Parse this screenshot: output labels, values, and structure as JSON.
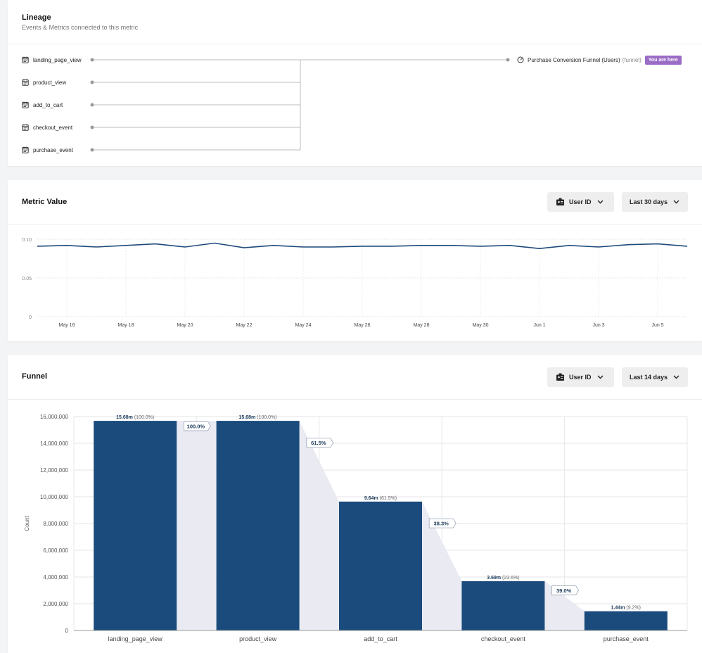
{
  "lineage": {
    "title": "Lineage",
    "subtitle": "Events & Metrics connected to this metric",
    "events": [
      "landing_page_view",
      "product_view",
      "add_to_cart",
      "checkout_event",
      "purchase_event"
    ],
    "target": {
      "label": "Purchase Conversion Funnel (Users)",
      "type": "(funnel)",
      "badge": "You are here"
    },
    "colors": {
      "badge": "#9b6cc6"
    }
  },
  "metric": {
    "title": "Metric Value",
    "id_selector": "User ID",
    "range_selector": "Last 30 days"
  },
  "funnel": {
    "title": "Funnel",
    "id_selector": "User ID",
    "range_selector": "Last 14 days"
  },
  "chart_data": [
    {
      "type": "line",
      "x": [
        "May 15",
        "May 16",
        "May 17",
        "May 18",
        "May 19",
        "May 20",
        "May 21",
        "May 22",
        "May 23",
        "May 24",
        "May 25",
        "May 26",
        "May 27",
        "May 28",
        "May 29",
        "May 30",
        "May 31",
        "Jun 1",
        "Jun 2",
        "Jun 3",
        "Jun 4",
        "Jun 5",
        "Jun 6"
      ],
      "series": [
        {
          "values": [
            0.091,
            0.092,
            0.09,
            0.092,
            0.094,
            0.09,
            0.095,
            0.089,
            0.092,
            0.09,
            0.09,
            0.091,
            0.091,
            0.092,
            0.092,
            0.091,
            0.092,
            0.088,
            0.092,
            0.09,
            0.093,
            0.094,
            0.091
          ]
        }
      ],
      "tick_labels": [
        "May 16",
        "May 18",
        "May 20",
        "May 22",
        "May 24",
        "May 26",
        "May 28",
        "May 30",
        "Jun 1",
        "Jun 3",
        "Jun 5"
      ],
      "y_ticks": [
        "0",
        "0.05",
        "0.10"
      ],
      "ylim": [
        0,
        0.1
      ],
      "grid": true,
      "color": "#1e4a7a"
    },
    {
      "type": "bar",
      "ylabel": "Count",
      "categories": [
        "landing_page_view",
        "product_view",
        "add_to_cart",
        "checkout_event",
        "purchase_event"
      ],
      "values": [
        15680000,
        15680000,
        9640000,
        3690000,
        1440000
      ],
      "bar_labels": [
        "15.68m",
        "15.68m",
        "9.64m",
        "3.69m",
        "1.44m"
      ],
      "bar_percents": [
        "(100.0%)",
        "(100.0%)",
        "(61.5%)",
        "(23.6%)",
        "(9.2%)"
      ],
      "step_conversion": [
        "100.0%",
        "61.5%",
        "38.3%",
        "39.0%"
      ],
      "y_ticks": [
        "0",
        "2,000,000",
        "4,000,000",
        "6,000,000",
        "8,000,000",
        "10,000,000",
        "12,000,000",
        "14,000,000",
        "16,000,000"
      ],
      "ylim": [
        0,
        16000000
      ],
      "grid": true,
      "color": "#1b4b7c"
    }
  ]
}
